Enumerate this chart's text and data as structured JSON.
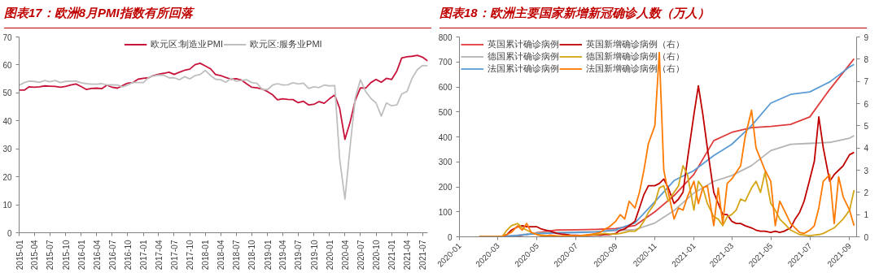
{
  "chart_data": [
    {
      "type": "line",
      "title": "图表17：欧洲8月PMI指数有所回落",
      "legend": "top",
      "grid": false,
      "x": [
        "2015-01",
        "2015-02",
        "2015-03",
        "2015-04",
        "2015-05",
        "2015-06",
        "2015-07",
        "2015-08",
        "2015-09",
        "2015-10",
        "2015-11",
        "2015-12",
        "2016-01",
        "2016-02",
        "2016-03",
        "2016-04",
        "2016-05",
        "2016-06",
        "2016-07",
        "2016-08",
        "2016-09",
        "2016-10",
        "2016-11",
        "2016-12",
        "2017-01",
        "2017-02",
        "2017-03",
        "2017-04",
        "2017-05",
        "2017-06",
        "2017-07",
        "2017-08",
        "2017-09",
        "2017-10",
        "2017-11",
        "2017-12",
        "2018-01",
        "2018-02",
        "2018-03",
        "2018-04",
        "2018-05",
        "2018-06",
        "2018-07",
        "2018-08",
        "2018-09",
        "2018-10",
        "2018-11",
        "2018-12",
        "2019-01",
        "2019-02",
        "2019-03",
        "2019-04",
        "2019-05",
        "2019-06",
        "2019-07",
        "2019-08",
        "2019-09",
        "2019-10",
        "2019-11",
        "2019-12",
        "2020-01",
        "2020-02",
        "2020-03",
        "2020-04",
        "2020-05",
        "2020-06",
        "2020-07",
        "2020-08",
        "2020-09",
        "2020-10",
        "2020-11",
        "2020-12",
        "2021-01",
        "2021-02",
        "2021-03",
        "2021-04",
        "2021-05",
        "2021-06",
        "2021-07",
        "2021-08"
      ],
      "xlim": [
        "2015-01",
        "2021-08"
      ],
      "xticks": [
        "2015-01",
        "2015-04",
        "2015-07",
        "2015-10",
        "2016-01",
        "2016-04",
        "2016-07",
        "2016-10",
        "2017-01",
        "2017-04",
        "2017-07",
        "2017-10",
        "2018-01",
        "2018-04",
        "2018-07",
        "2018-10",
        "2019-01",
        "2019-04",
        "2019-07",
        "2019-10",
        "2020-01",
        "2020-04",
        "2020-07",
        "2020-10",
        "2021-01",
        "2021-04",
        "2021-07"
      ],
      "ylim": [
        0,
        70
      ],
      "yticks": [
        0,
        10,
        20,
        30,
        40,
        50,
        60,
        70
      ],
      "series": [
        {
          "name": "欧元区:制造业PMI",
          "color": "#c8143c",
          "values": [
            51.0,
            51.0,
            52.2,
            52.0,
            52.2,
            52.5,
            52.4,
            52.3,
            52.0,
            52.3,
            52.8,
            53.2,
            52.3,
            51.2,
            51.6,
            51.7,
            51.5,
            52.8,
            52.0,
            51.7,
            52.6,
            53.5,
            53.7,
            54.9,
            55.2,
            55.4,
            56.2,
            56.7,
            57.0,
            57.4,
            56.6,
            57.4,
            58.1,
            58.5,
            60.1,
            60.6,
            59.6,
            58.6,
            56.6,
            56.2,
            55.5,
            54.9,
            55.1,
            54.6,
            53.2,
            52.0,
            51.8,
            51.4,
            50.5,
            49.3,
            47.5,
            47.9,
            47.7,
            47.6,
            46.5,
            47.0,
            45.7,
            45.9,
            46.9,
            46.3,
            47.9,
            49.2,
            44.5,
            33.4,
            39.4,
            47.4,
            51.8,
            51.7,
            53.7,
            54.8,
            53.8,
            55.2,
            54.8,
            57.9,
            62.5,
            62.9,
            63.1,
            63.4,
            62.8,
            61.4
          ]
        },
        {
          "name": "欧元区:服务业PMI",
          "color": "#bfbfbf",
          "values": [
            52.7,
            53.7,
            54.2,
            54.1,
            53.8,
            54.4,
            54.0,
            54.4,
            53.7,
            54.1,
            54.2,
            54.2,
            53.6,
            53.3,
            53.1,
            53.1,
            53.3,
            52.8,
            52.9,
            52.8,
            52.2,
            52.8,
            53.8,
            53.7,
            53.7,
            55.5,
            56.0,
            56.4,
            56.3,
            55.4,
            55.4,
            54.7,
            55.8,
            55.0,
            56.2,
            56.6,
            58.0,
            56.2,
            54.9,
            54.7,
            53.8,
            55.2,
            54.2,
            54.4,
            54.7,
            53.7,
            53.4,
            51.2,
            51.2,
            52.8,
            53.3,
            52.8,
            52.9,
            53.6,
            53.2,
            53.5,
            51.6,
            52.2,
            51.9,
            52.8,
            52.5,
            52.6,
            26.4,
            12.0,
            30.5,
            48.3,
            54.7,
            50.5,
            48.0,
            46.4,
            41.7,
            46.4,
            45.4,
            45.7,
            49.6,
            50.5,
            55.2,
            58.3,
            59.8,
            59.7
          ]
        }
      ]
    },
    {
      "type": "line",
      "title": "图表18：欧洲主要国家新增新冠确诊人数（万人）",
      "legend": "top left",
      "grid": false,
      "xlim": [
        "2020-01-01",
        "2021-09-12"
      ],
      "xticks": [
        "2020-01",
        "2020-03",
        "2020-05",
        "2020-07",
        "2020-09",
        "2020-11",
        "2021-01",
        "2021-03",
        "2021-05",
        "2021-07",
        "2021-09"
      ],
      "ylim": [
        0,
        800
      ],
      "yticks": [
        0,
        100,
        200,
        300,
        400,
        500,
        600,
        700,
        800
      ],
      "y2lim": [
        0,
        9
      ],
      "y2ticks": [
        0,
        1,
        2,
        3,
        4,
        5,
        6,
        7,
        8,
        9
      ],
      "series": [
        {
          "name": "英国累计确诊病例",
          "color": "#e03c3c",
          "x": [
            "2020-02-01",
            "2020-03-01",
            "2020-04-01",
            "2020-05-01",
            "2020-06-01",
            "2020-07-01",
            "2020-08-01",
            "2020-09-01",
            "2020-10-01",
            "2020-11-01",
            "2020-12-01",
            "2021-01-01",
            "2021-02-01",
            "2021-03-01",
            "2021-04-01",
            "2021-05-01",
            "2021-06-01",
            "2021-07-01",
            "2021-08-01",
            "2021-09-01",
            "2021-09-08"
          ],
          "values": [
            0,
            0,
            3,
            17,
            27,
            28,
            30,
            33,
            45,
            100,
            165,
            250,
            385,
            418,
            437,
            442,
            450,
            480,
            590,
            690,
            713
          ]
        },
        {
          "name": "德国累计确诊病例",
          "color": "#b4b4b4",
          "x": [
            "2020-02-01",
            "2020-03-01",
            "2020-04-01",
            "2020-05-01",
            "2020-06-01",
            "2020-07-01",
            "2020-08-01",
            "2020-09-01",
            "2020-10-01",
            "2020-11-01",
            "2020-12-01",
            "2021-01-01",
            "2021-02-01",
            "2021-03-01",
            "2021-04-01",
            "2021-05-01",
            "2021-06-01",
            "2021-07-01",
            "2021-08-01",
            "2021-09-01",
            "2021-09-08"
          ],
          "values": [
            0,
            0,
            7,
            16,
            18,
            19,
            21,
            24,
            29,
            55,
            105,
            175,
            222,
            245,
            285,
            345,
            370,
            374,
            378,
            395,
            405
          ]
        },
        {
          "name": "法国累计确诊病例",
          "color": "#5b9bd5",
          "x": [
            "2020-02-01",
            "2020-03-01",
            "2020-04-01",
            "2020-05-01",
            "2020-06-01",
            "2020-07-01",
            "2020-08-01",
            "2020-09-01",
            "2020-10-01",
            "2020-11-01",
            "2020-12-01",
            "2021-01-01",
            "2021-02-01",
            "2021-03-01",
            "2021-04-01",
            "2021-05-01",
            "2021-06-01",
            "2021-07-01",
            "2021-08-01",
            "2021-09-01",
            "2021-09-08"
          ],
          "values": [
            0,
            0,
            5,
            13,
            15,
            17,
            19,
            28,
            56,
            140,
            225,
            265,
            325,
            370,
            445,
            535,
            570,
            580,
            620,
            680,
            690
          ]
        },
        {
          "name": "英国新增确诊病例（右）",
          "color": "#c00000",
          "axis": "y2",
          "x": [
            "2020-03-08",
            "2020-03-15",
            "2020-03-22",
            "2020-04-01",
            "2020-04-08",
            "2020-04-15",
            "2020-04-22",
            "2020-05-01",
            "2020-05-08",
            "2020-05-15",
            "2020-05-22",
            "2020-06-01",
            "2020-06-08",
            "2020-06-15",
            "2020-06-22",
            "2020-07-01",
            "2020-07-08",
            "2020-07-15",
            "2020-07-22",
            "2020-08-01",
            "2020-08-08",
            "2020-08-15",
            "2020-08-22",
            "2020-09-01",
            "2020-09-08",
            "2020-09-15",
            "2020-09-22",
            "2020-10-01",
            "2020-10-08",
            "2020-10-15",
            "2020-10-22",
            "2020-11-01",
            "2020-11-08",
            "2020-11-15",
            "2020-11-22",
            "2020-12-01",
            "2020-12-08",
            "2020-12-15",
            "2020-12-22",
            "2021-01-01",
            "2021-01-08",
            "2021-01-15",
            "2021-01-22",
            "2021-02-01",
            "2021-02-08",
            "2021-02-15",
            "2021-02-22",
            "2021-03-01",
            "2021-03-08",
            "2021-03-15",
            "2021-03-22",
            "2021-04-01",
            "2021-04-08",
            "2021-04-15",
            "2021-04-22",
            "2021-05-01",
            "2021-05-08",
            "2021-05-15",
            "2021-05-22",
            "2021-06-01",
            "2021-06-08",
            "2021-06-15",
            "2021-06-22",
            "2021-07-01",
            "2021-07-08",
            "2021-07-15",
            "2021-07-22",
            "2021-08-01",
            "2021-08-08",
            "2021-08-15",
            "2021-08-22",
            "2021-09-01",
            "2021-09-08"
          ],
          "values": [
            0.02,
            0.1,
            0.3,
            0.45,
            0.5,
            0.45,
            0.45,
            0.45,
            0.35,
            0.3,
            0.25,
            0.15,
            0.12,
            0.1,
            0.08,
            0.07,
            0.06,
            0.06,
            0.07,
            0.08,
            0.08,
            0.1,
            0.1,
            0.15,
            0.3,
            0.35,
            0.5,
            0.7,
            1.3,
            1.9,
            2.3,
            2.3,
            2.4,
            2.6,
            2.2,
            1.5,
            1.7,
            2.0,
            3.5,
            5.5,
            6.8,
            5.5,
            4.0,
            2.0,
            1.5,
            1.0,
            1.0,
            0.7,
            0.6,
            0.6,
            0.5,
            0.4,
            0.3,
            0.25,
            0.25,
            0.2,
            0.25,
            0.2,
            0.25,
            0.4,
            0.8,
            1.1,
            1.6,
            2.6,
            3.4,
            5.4,
            4.0,
            2.5,
            2.8,
            3.0,
            3.2,
            3.7,
            3.8
          ]
        },
        {
          "name": "德国新增确诊病例（右）",
          "color": "#d4a514",
          "axis": "y2",
          "x": [
            "2020-02-01",
            "2020-02-15",
            "2020-03-01",
            "2020-03-08",
            "2020-03-15",
            "2020-03-22",
            "2020-04-01",
            "2020-04-08",
            "2020-04-15",
            "2020-04-22",
            "2020-05-01",
            "2020-05-08",
            "2020-05-15",
            "2020-05-22",
            "2020-06-01",
            "2020-06-08",
            "2020-06-15",
            "2020-06-22",
            "2020-07-01",
            "2020-07-08",
            "2020-07-15",
            "2020-07-22",
            "2020-08-01",
            "2020-08-08",
            "2020-08-15",
            "2020-08-22",
            "2020-09-01",
            "2020-09-08",
            "2020-09-15",
            "2020-09-22",
            "2020-10-01",
            "2020-10-08",
            "2020-10-15",
            "2020-10-22",
            "2020-11-01",
            "2020-11-08",
            "2020-11-15",
            "2020-11-22",
            "2020-12-01",
            "2020-12-08",
            "2020-12-15",
            "2020-12-22",
            "2021-01-01",
            "2021-01-08",
            "2021-01-15",
            "2021-01-22",
            "2021-02-01",
            "2021-02-08",
            "2021-02-15",
            "2021-02-22",
            "2021-03-01",
            "2021-03-08",
            "2021-03-15",
            "2021-03-22",
            "2021-04-01",
            "2021-04-08",
            "2021-04-15",
            "2021-04-22",
            "2021-05-01",
            "2021-05-08",
            "2021-05-15",
            "2021-05-22",
            "2021-06-01",
            "2021-06-08",
            "2021-06-15",
            "2021-06-22",
            "2021-07-01",
            "2021-07-08",
            "2021-07-15",
            "2021-07-22",
            "2021-08-01",
            "2021-08-08",
            "2021-08-15",
            "2021-08-22",
            "2021-09-01",
            "2021-09-08"
          ],
          "values": [
            0,
            0,
            0.01,
            0.02,
            0.3,
            0.5,
            0.6,
            0.4,
            0.3,
            0.2,
            0.1,
            0.08,
            0.06,
            0.05,
            0.04,
            0.03,
            0.03,
            0.05,
            0.03,
            0.04,
            0.05,
            0.08,
            0.1,
            0.12,
            0.15,
            0.12,
            0.12,
            0.15,
            0.2,
            0.25,
            0.25,
            0.4,
            0.7,
            1.1,
            1.5,
            2.2,
            2.3,
            1.6,
            2.0,
            2.3,
            3.2,
            2.8,
            1.2,
            2.5,
            2.2,
            1.5,
            0.9,
            0.8,
            0.5,
            0.9,
            1.0,
            1.2,
            1.7,
            1.6,
            2.2,
            2.5,
            2.0,
            2.9,
            1.5,
            1.2,
            0.8,
            0.6,
            0.3,
            0.2,
            0.1,
            0.08,
            0.05,
            0.08,
            0.1,
            0.15,
            0.3,
            0.4,
            0.6,
            0.8,
            1.2,
            2.1
          ]
        },
        {
          "name": "法国新增确诊病例（右）",
          "color": "#ff7a00",
          "axis": "y2",
          "x": [
            "2020-02-01",
            "2020-02-15",
            "2020-03-01",
            "2020-03-08",
            "2020-03-15",
            "2020-03-22",
            "2020-04-01",
            "2020-04-08",
            "2020-04-15",
            "2020-04-22",
            "2020-05-01",
            "2020-05-08",
            "2020-05-15",
            "2020-05-22",
            "2020-06-01",
            "2020-06-08",
            "2020-06-15",
            "2020-06-22",
            "2020-07-01",
            "2020-07-08",
            "2020-07-15",
            "2020-07-22",
            "2020-08-01",
            "2020-08-08",
            "2020-08-15",
            "2020-08-22",
            "2020-09-01",
            "2020-09-08",
            "2020-09-15",
            "2020-09-22",
            "2020-10-01",
            "2020-10-08",
            "2020-10-15",
            "2020-10-22",
            "2020-11-01",
            "2020-11-08",
            "2020-11-15",
            "2020-11-22",
            "2020-12-01",
            "2020-12-08",
            "2020-12-15",
            "2020-12-22",
            "2021-01-01",
            "2021-01-08",
            "2021-01-15",
            "2021-01-22",
            "2021-02-01",
            "2021-02-08",
            "2021-02-15",
            "2021-02-22",
            "2021-03-01",
            "2021-03-08",
            "2021-03-15",
            "2021-03-22",
            "2021-04-01",
            "2021-04-08",
            "2021-04-15",
            "2021-04-22",
            "2021-05-01",
            "2021-05-08",
            "2021-05-15",
            "2021-05-22",
            "2021-06-01",
            "2021-06-08",
            "2021-06-15",
            "2021-06-22",
            "2021-07-01",
            "2021-07-08",
            "2021-07-15",
            "2021-07-22",
            "2021-08-01",
            "2021-08-08",
            "2021-08-15",
            "2021-08-22",
            "2021-09-01",
            "2021-09-08"
          ],
          "values": [
            0,
            0,
            0.01,
            0.02,
            0.1,
            0.2,
            0.5,
            0.3,
            0.6,
            0.2,
            0.1,
            0.05,
            0.03,
            0.08,
            0.02,
            0.03,
            0.05,
            0.04,
            0.05,
            0.06,
            0.08,
            0.1,
            0.15,
            0.2,
            0.35,
            0.45,
            0.7,
            1.0,
            0.8,
            1.6,
            1.3,
            2.0,
            3.0,
            4.2,
            5.0,
            8.3,
            3.0,
            2.0,
            0.8,
            1.3,
            1.2,
            1.8,
            2.5,
            1.5,
            2.2,
            2.3,
            0.5,
            2.2,
            0.6,
            2.4,
            2.6,
            2.9,
            3.2,
            4.5,
            5.7,
            4.0,
            3.5,
            3.0,
            2.5,
            0.5,
            1.6,
            1.2,
            0.6,
            0.4,
            0.2,
            0.15,
            0.3,
            0.5,
            1.3,
            2.5,
            2.8,
            0.6,
            2.7,
            1.8,
            1.2,
            0.5
          ]
        }
      ]
    }
  ]
}
